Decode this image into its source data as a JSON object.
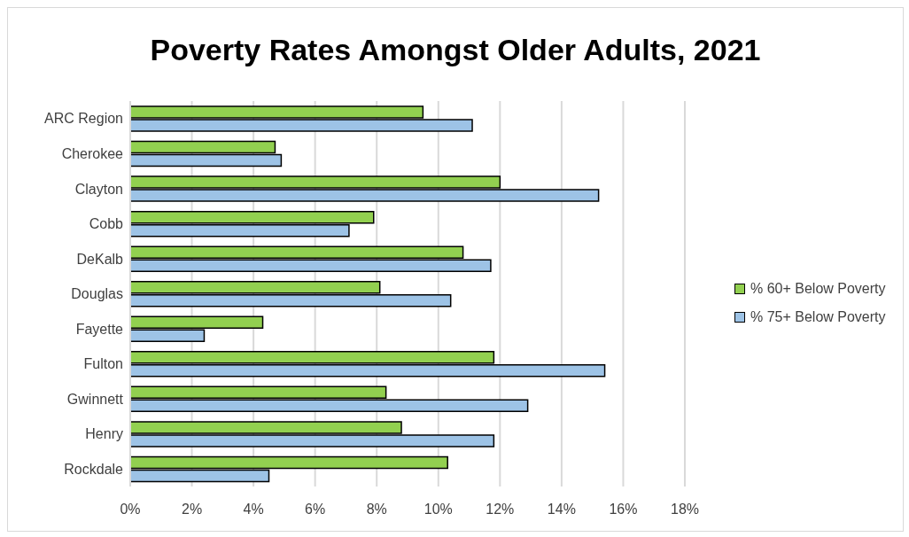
{
  "chart_data": {
    "type": "bar",
    "orientation": "horizontal",
    "title": "Poverty Rates Amongst Older Adults, 2021",
    "categories": [
      "ARC Region",
      "Cherokee",
      "Clayton",
      "Cobb",
      "DeKalb",
      "Douglas",
      "Fayette",
      "Fulton",
      "Gwinnett",
      "Henry",
      "Rockdale"
    ],
    "series": [
      {
        "name": "% 60+ Below Poverty",
        "color": "#92d050",
        "values": [
          9.5,
          4.7,
          12.0,
          7.9,
          10.8,
          8.1,
          4.3,
          11.8,
          8.3,
          8.8,
          10.3
        ]
      },
      {
        "name": "% 75+ Below Poverty",
        "color": "#9dc3e6",
        "values": [
          11.1,
          4.9,
          15.2,
          7.1,
          11.7,
          10.4,
          2.4,
          15.4,
          12.9,
          11.8,
          4.5
        ]
      }
    ],
    "xlim": [
      0,
      18
    ],
    "xticks": [
      {
        "value": 0,
        "label": "0%"
      },
      {
        "value": 2,
        "label": "2%"
      },
      {
        "value": 4,
        "label": "4%"
      },
      {
        "value": 6,
        "label": "6%"
      },
      {
        "value": 8,
        "label": "8%"
      },
      {
        "value": 10,
        "label": "10%"
      },
      {
        "value": 12,
        "label": "12%"
      },
      {
        "value": 14,
        "label": "14%"
      },
      {
        "value": 16,
        "label": "16%"
      },
      {
        "value": 18,
        "label": "18%"
      }
    ],
    "grid": "x",
    "legend": "right"
  }
}
